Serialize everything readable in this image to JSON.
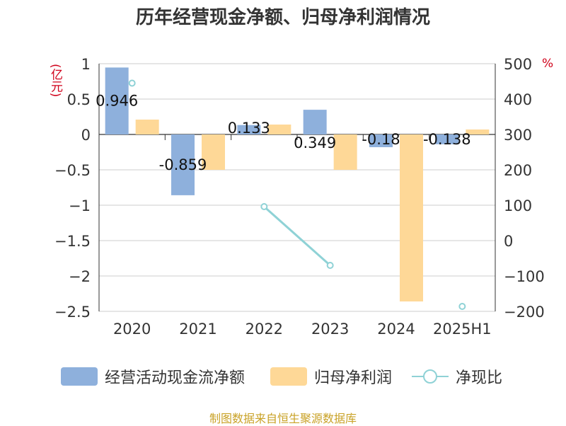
{
  "chart_data": {
    "type": "bar",
    "title": "历年经营现金净额、归母净利润情况",
    "categories": [
      "2020",
      "2021",
      "2022",
      "2023",
      "2024",
      "2025H1"
    ],
    "series": [
      {
        "name": "经营活动现金流净额",
        "kind": "bar",
        "axis": "left",
        "color": "#8eb0dc",
        "values": [
          0.946,
          -0.859,
          0.133,
          0.349,
          -0.18,
          -0.138
        ],
        "labels": [
          "0.946",
          "-0.859",
          "0.133",
          "0.349",
          "-0.18",
          "-0.138"
        ]
      },
      {
        "name": "归母净利润",
        "kind": "bar",
        "axis": "left",
        "color": "#fed897",
        "values": [
          0.21,
          -0.5,
          0.14,
          -0.5,
          -2.36,
          0.07
        ]
      },
      {
        "name": "净现比",
        "kind": "line",
        "axis": "right",
        "color": "#8fd2d6",
        "values": [
          445,
          null,
          96,
          -70,
          null,
          -186
        ]
      }
    ],
    "y_left": {
      "unit": "(亿元)",
      "min": -2.5,
      "max": 1,
      "ticks": [
        "1",
        "0.5",
        "0",
        "-0.5",
        "-1",
        "-1.5",
        "-2",
        "-2.5"
      ]
    },
    "y_right": {
      "unit": "%",
      "min": -200,
      "max": 500,
      "ticks": [
        "500",
        "400",
        "300",
        "200",
        "100",
        "0",
        "-100",
        "-200"
      ]
    },
    "grid": true,
    "legend": "bottom",
    "source": "制图数据来自恒生聚源数据库"
  }
}
